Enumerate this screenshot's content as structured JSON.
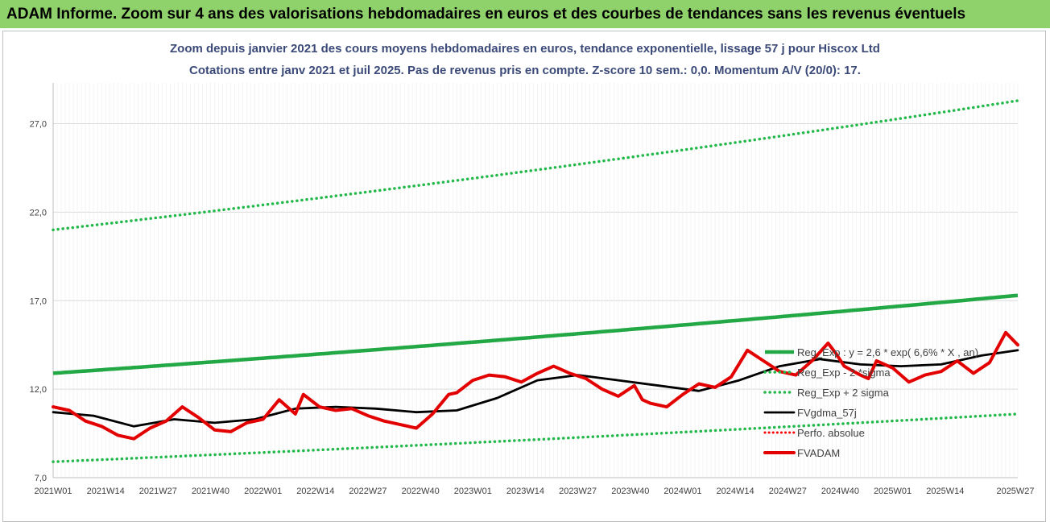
{
  "header": {
    "banner": "ADAM Informe. Zoom sur 4 ans des valorisations hebdomadaires en euros et des courbes de tendances sans les revenus éventuels"
  },
  "chart_data": {
    "type": "line",
    "title": "Zoom depuis janvier 2021 des cours moyens hebdomadaires en euros, tendance exponentielle, lissage 57 j pour Hiscox Ltd",
    "subtitle": "Cotations entre janv 2021 et juil 2025. Pas de revenus pris en compte. Z-score 10 sem.: 0,0. Momentum A/V (20/0): 17.",
    "xlabel": "",
    "ylabel": "",
    "ylim": [
      7.0,
      29.3
    ],
    "yticks": [
      7.0,
      12.0,
      17.0,
      22.0,
      27.0
    ],
    "ytick_labels": [
      "7,0",
      "12,0",
      "17,0",
      "22,0",
      "27,0"
    ],
    "xtick_labels": [
      "2021W01",
      "2021W14",
      "2021W27",
      "2021W40",
      "2022W01",
      "2022W14",
      "2022W27",
      "2022W40",
      "2023W01",
      "2023W14",
      "2023W27",
      "2023W40",
      "2024W01",
      "2024W14",
      "2024W27",
      "2024W40",
      "2025W01",
      "2025W14",
      "2025W27"
    ],
    "n_weeks": 240,
    "grid": true,
    "legend_position": "lower-right",
    "series": [
      {
        "name": "Reg_Exp : y = 2,6 * exp( 6,6% * X , an)",
        "color": "#22a845",
        "style": "solid",
        "x": [
          0,
          239
        ],
        "y": [
          12.9,
          17.3
        ]
      },
      {
        "name": "Reg_Exp - 2 *sigma",
        "color": "#22b84a",
        "style": "dotted",
        "x": [
          0,
          239
        ],
        "y": [
          7.9,
          10.6
        ]
      },
      {
        "name": "Reg_Exp + 2 sigma",
        "color": "#22b84a",
        "style": "dotted",
        "x": [
          0,
          239
        ],
        "y": [
          21.0,
          28.3
        ]
      },
      {
        "name": "FVgdma_57j",
        "color": "#000000",
        "style": "solid",
        "x": [
          0,
          10,
          20,
          30,
          40,
          50,
          60,
          70,
          80,
          90,
          100,
          110,
          120,
          130,
          140,
          150,
          160,
          170,
          180,
          190,
          200,
          210,
          220,
          230,
          239
        ],
        "y": [
          10.7,
          10.5,
          9.9,
          10.3,
          10.1,
          10.3,
          10.9,
          11.0,
          10.9,
          10.7,
          10.8,
          11.5,
          12.5,
          12.8,
          12.5,
          12.2,
          11.9,
          12.5,
          13.3,
          13.7,
          13.4,
          13.3,
          13.4,
          13.9,
          14.2
        ]
      },
      {
        "name": "Perfo. absolue",
        "color": "#ff0000",
        "style": "dotted",
        "x": [],
        "y": []
      },
      {
        "name": "FVADAM",
        "color": "#e30000",
        "style": "solid",
        "x": [
          0,
          4,
          8,
          12,
          16,
          20,
          24,
          28,
          32,
          36,
          40,
          44,
          48,
          52,
          56,
          60,
          62,
          66,
          70,
          74,
          78,
          82,
          86,
          90,
          94,
          98,
          100,
          104,
          108,
          112,
          116,
          120,
          124,
          128,
          132,
          136,
          140,
          144,
          146,
          148,
          152,
          156,
          160,
          164,
          168,
          172,
          176,
          180,
          184,
          188,
          192,
          194,
          196,
          200,
          202,
          204,
          208,
          212,
          216,
          220,
          224,
          228,
          232,
          236,
          239
        ],
        "y": [
          11.0,
          10.8,
          10.2,
          9.9,
          9.4,
          9.2,
          9.8,
          10.2,
          11.0,
          10.4,
          9.7,
          9.6,
          10.1,
          10.3,
          11.4,
          10.6,
          11.7,
          11.0,
          10.8,
          10.9,
          10.5,
          10.2,
          10.0,
          9.8,
          10.6,
          11.7,
          11.8,
          12.5,
          12.8,
          12.7,
          12.4,
          12.9,
          13.3,
          12.9,
          12.6,
          12.0,
          11.6,
          12.2,
          11.4,
          11.2,
          11.0,
          11.7,
          12.3,
          12.1,
          12.7,
          14.2,
          13.6,
          13.0,
          12.8,
          13.6,
          14.6,
          14.0,
          13.3,
          12.8,
          12.6,
          13.6,
          13.2,
          12.4,
          12.8,
          13.0,
          13.6,
          12.9,
          13.5,
          15.2,
          14.5
        ]
      }
    ]
  }
}
